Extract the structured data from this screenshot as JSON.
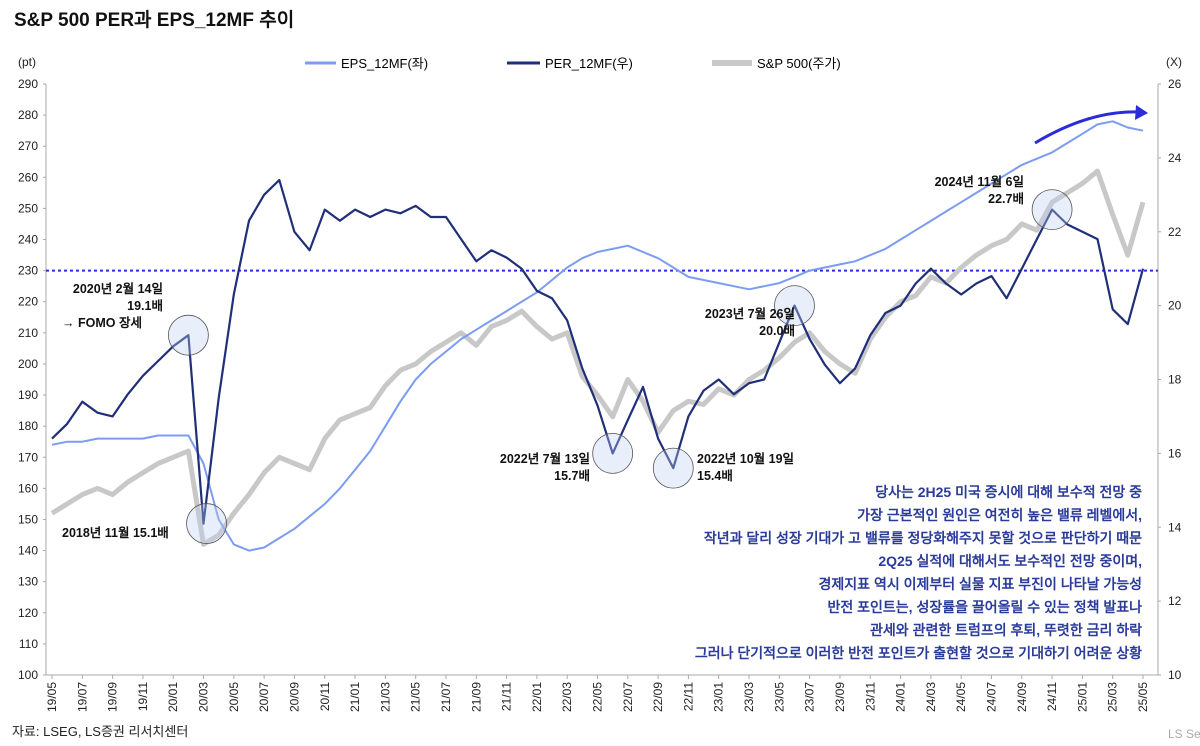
{
  "chart_data": {
    "type": "line",
    "title": "S&P 500 PER과 EPS_12MF 추이",
    "left_axis": {
      "unit": "(pt)",
      "range": [
        100,
        290
      ],
      "ticks": [
        100,
        110,
        120,
        130,
        140,
        150,
        160,
        170,
        180,
        190,
        200,
        210,
        220,
        230,
        240,
        250,
        260,
        270,
        280,
        290
      ]
    },
    "right_axis": {
      "unit": "(X)",
      "range": [
        10,
        26
      ],
      "ticks": [
        10,
        12,
        14,
        16,
        18,
        20,
        22,
        24,
        26
      ]
    },
    "x_tick_labels": [
      "19/05",
      "19/07",
      "19/09",
      "19/11",
      "20/01",
      "20/03",
      "20/05",
      "20/07",
      "20/09",
      "20/11",
      "21/01",
      "21/03",
      "21/05",
      "21/07",
      "21/09",
      "21/11",
      "22/01",
      "22/03",
      "22/05",
      "22/07",
      "22/09",
      "22/11",
      "23/01",
      "23/03",
      "23/05",
      "23/07",
      "23/09",
      "23/11",
      "24/01",
      "24/03",
      "24/05",
      "24/07",
      "24/09",
      "24/11",
      "25/01",
      "25/03",
      "25/05"
    ],
    "reference_line": {
      "axis": "left",
      "value": 230,
      "color": "#2b2bdc"
    },
    "series": [
      {
        "name": "EPS_12MF(좌)",
        "axis": "left",
        "color": "#7b9cf0",
        "values": [
          174,
          175,
          175,
          176,
          176,
          176,
          176,
          177,
          177,
          177,
          168,
          150,
          142,
          140,
          141,
          144,
          147,
          151,
          155,
          160,
          166,
          172,
          180,
          188,
          195,
          200,
          204,
          208,
          211,
          214,
          217,
          220,
          223,
          227,
          231,
          234,
          236,
          237,
          238,
          236,
          234,
          231,
          228,
          227,
          226,
          225,
          224,
          225,
          226,
          228,
          230,
          231,
          232,
          233,
          235,
          237,
          240,
          243,
          246,
          249,
          252,
          255,
          258,
          261,
          264,
          266,
          268,
          271,
          274,
          277,
          278,
          276,
          275
        ]
      },
      {
        "name": "PER_12MF(우)",
        "axis": "right",
        "color": "#1f2f78",
        "values": [
          16.4,
          16.8,
          17.4,
          17.1,
          17.0,
          17.6,
          18.1,
          18.5,
          18.9,
          19.2,
          14.1,
          17.5,
          20.3,
          22.3,
          23.0,
          23.4,
          22.0,
          21.5,
          22.6,
          22.3,
          22.6,
          22.4,
          22.6,
          22.5,
          22.7,
          22.4,
          22.4,
          21.8,
          21.2,
          21.5,
          21.3,
          21.0,
          20.4,
          20.2,
          19.6,
          18.3,
          17.3,
          16.0,
          16.9,
          17.8,
          16.4,
          15.6,
          17.0,
          17.7,
          18.0,
          17.6,
          17.9,
          18.0,
          19.0,
          20.0,
          19.1,
          18.4,
          17.9,
          18.3,
          19.2,
          19.8,
          20.0,
          20.6,
          21.0,
          20.6,
          20.3,
          20.6,
          20.8,
          20.2,
          21.0,
          21.8,
          22.6,
          22.2,
          22.0,
          21.8,
          19.9,
          19.5,
          21.0
        ]
      },
      {
        "name": "S&P 500(주가)",
        "axis": "left",
        "color": "#c8c8c8",
        "values": [
          152,
          155,
          158,
          160,
          158,
          162,
          165,
          168,
          170,
          172,
          142,
          145,
          152,
          158,
          165,
          170,
          168,
          166,
          176,
          182,
          184,
          186,
          193,
          198,
          200,
          204,
          207,
          210,
          206,
          212,
          214,
          217,
          212,
          208,
          210,
          196,
          190,
          183,
          195,
          188,
          178,
          185,
          188,
          187,
          192,
          190,
          195,
          198,
          202,
          207,
          210,
          204,
          200,
          197,
          208,
          215,
          220,
          222,
          228,
          226,
          231,
          235,
          238,
          240,
          245,
          243,
          252,
          255,
          258,
          262,
          248,
          235,
          252
        ]
      }
    ],
    "annotations": [
      {
        "text": [
          "2020년 2월 14일",
          "19.1배",
          "→ FOMO 장세"
        ]
      },
      {
        "text": [
          "2018년 11월 15.1배"
        ]
      },
      {
        "text": [
          "2022년 7월 13일",
          "15.7배"
        ]
      },
      {
        "text": [
          "2022년 10월 19일",
          "15.4배"
        ]
      },
      {
        "text": [
          "2023년 7월 26일",
          "20.0배"
        ]
      },
      {
        "text": [
          "2024년 11월 6일",
          "22.7배"
        ]
      }
    ],
    "commentary": [
      "당사는 2H25 미국 증시에 대해 보수적 전망 중",
      "가장 근본적인 원인은 여전히 높은 밸류 레벨에서,",
      "작년과 달리 성장 기대가 고 밸류를 정당화해주지 못할 것으로 판단하기 때문",
      "2Q25 실적에 대해서도 보수적인 전망 중이며,",
      "경제지표 역시 이제부터 실물 지표 부진이 나타날 가능성",
      "반전 포인트는, 성장률을 끌어올릴 수 있는 정책 발표나",
      "관세와 관련한 트럼프의 후퇴, 뚜렷한 금리 하락",
      "그러나 단기적으로 이러한 반전 포인트가 출현할 것으로 기대하기 어려운 상황"
    ],
    "source": "자료: LSEG, LS증권 리서치센터",
    "watermark": "LS Se"
  }
}
